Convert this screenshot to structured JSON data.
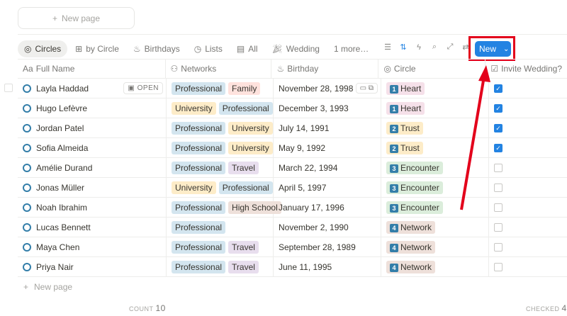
{
  "top_new_page": "New page",
  "views": [
    {
      "label": "Circles",
      "icon": "target-icon"
    },
    {
      "label": "by Circle",
      "icon": "board-icon"
    },
    {
      "label": "Birthdays",
      "icon": "cake-icon"
    },
    {
      "label": "Lists",
      "icon": "clock-icon"
    },
    {
      "label": "All",
      "icon": "table-icon"
    },
    {
      "label": "Wedding",
      "icon": "party-icon"
    },
    {
      "label": "1 more…"
    }
  ],
  "new_button": "New",
  "columns": [
    "Full Name",
    "Networks",
    "Birthday",
    "Circle",
    "Invite Wedding?"
  ],
  "open_label": "OPEN",
  "tag_colors": {
    "Professional": "#d3e5ef",
    "Family": "#ffe2dd",
    "University": "#fdecc8",
    "Travel": "#e8deee",
    "High School": "#eee0da"
  },
  "circle_colors": {
    "Heart": "#f5e0e9",
    "Trust": "#fdecc8",
    "Encounter": "#dbeddb",
    "Network": "#eee0da"
  },
  "rows": [
    {
      "name": "Layla Haddad",
      "networks": [
        "Professional",
        "Family"
      ],
      "birthday": "November 28, 1998",
      "circle_num": "1",
      "circle": "Heart",
      "invite": true
    },
    {
      "name": "Hugo Lefèvre",
      "networks": [
        "University",
        "Professional"
      ],
      "birthday": "December 3, 1993",
      "circle_num": "1",
      "circle": "Heart",
      "invite": true
    },
    {
      "name": "Jordan Patel",
      "networks": [
        "Professional",
        "University"
      ],
      "birthday": "July 14, 1991",
      "circle_num": "2",
      "circle": "Trust",
      "invite": true
    },
    {
      "name": "Sofia Almeida",
      "networks": [
        "Professional",
        "University"
      ],
      "birthday": "May 9, 1992",
      "circle_num": "2",
      "circle": "Trust",
      "invite": true
    },
    {
      "name": "Amélie Durand",
      "networks": [
        "Professional",
        "Travel"
      ],
      "birthday": "March 22, 1994",
      "circle_num": "3",
      "circle": "Encounter",
      "invite": false
    },
    {
      "name": "Jonas Müller",
      "networks": [
        "University",
        "Professional"
      ],
      "birthday": "April 5, 1997",
      "circle_num": "3",
      "circle": "Encounter",
      "invite": false
    },
    {
      "name": "Noah Ibrahim",
      "networks": [
        "Professional",
        "High School"
      ],
      "birthday": "January 17, 1996",
      "circle_num": "3",
      "circle": "Encounter",
      "invite": false
    },
    {
      "name": "Lucas Bennett",
      "networks": [
        "Professional"
      ],
      "birthday": "November 2, 1990",
      "circle_num": "4",
      "circle": "Network",
      "invite": false
    },
    {
      "name": "Maya Chen",
      "networks": [
        "Professional",
        "Travel"
      ],
      "birthday": "September 28, 1989",
      "circle_num": "4",
      "circle": "Network",
      "invite": false
    },
    {
      "name": "Priya Nair",
      "networks": [
        "Professional",
        "Travel"
      ],
      "birthday": "June 11, 1995",
      "circle_num": "4",
      "circle": "Network",
      "invite": false
    }
  ],
  "add_row": "New page",
  "footer": {
    "count_label": "COUNT",
    "count": "10",
    "checked_label": "CHECKED",
    "checked": "4"
  }
}
